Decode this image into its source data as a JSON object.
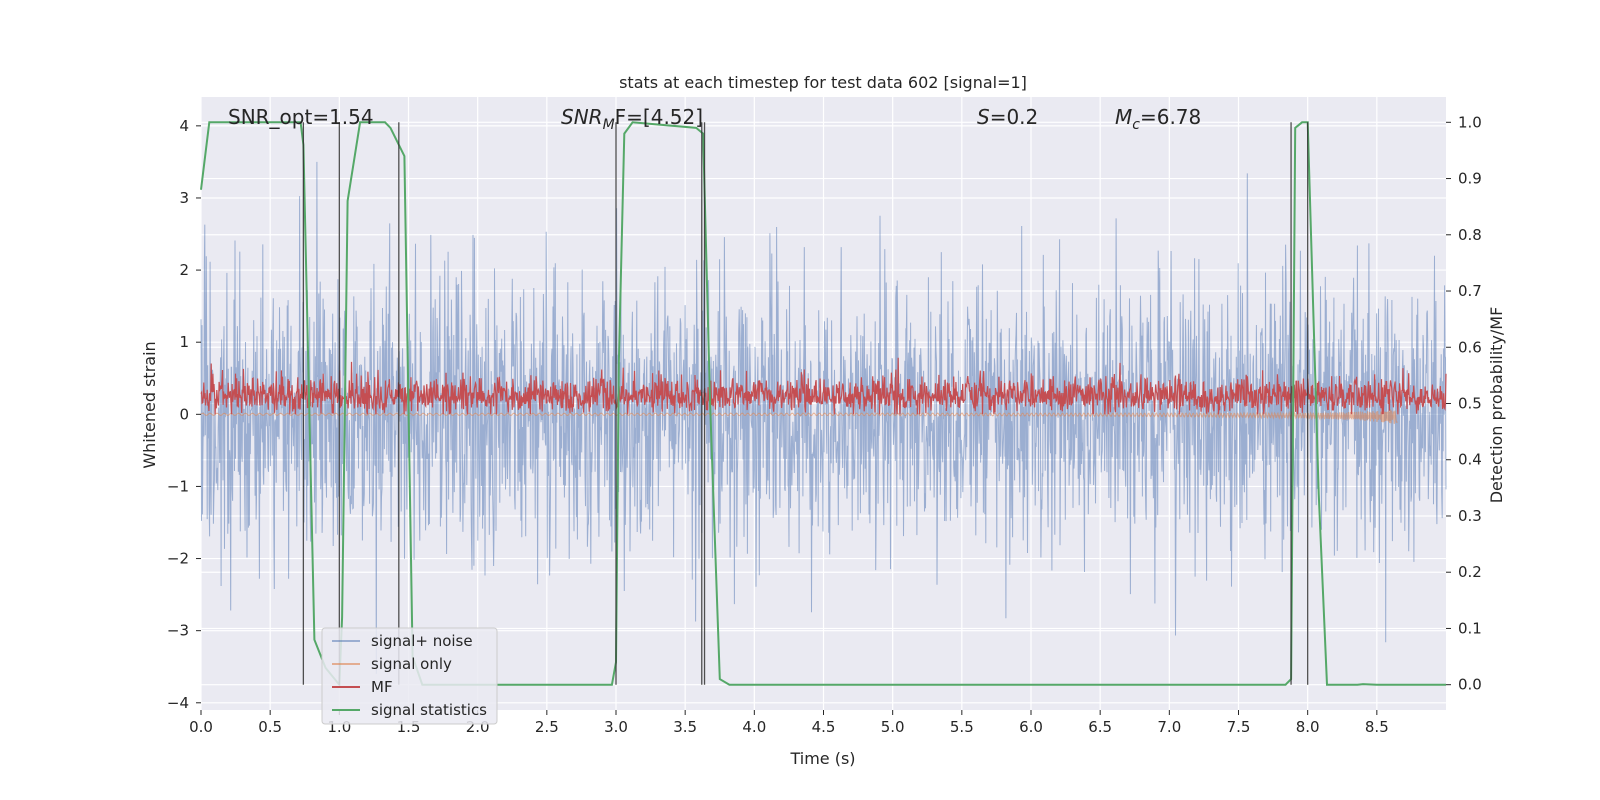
{
  "chart_data": {
    "type": "line",
    "title": "stats at each timestep for test data 602 [signal=1]",
    "xlabel": "Time (s)",
    "ylabel": "Whitened strain",
    "ylabel_right": "Detection probability/MF",
    "xlim": [
      0,
      9.0
    ],
    "ylim": [
      -4.1,
      4.4
    ],
    "ylim_right": [
      -0.045,
      1.045
    ],
    "x_ticks": [
      "0.0",
      "0.5",
      "1.0",
      "1.5",
      "2.0",
      "2.5",
      "3.0",
      "3.5",
      "4.0",
      "4.5",
      "5.0",
      "5.5",
      "6.0",
      "6.5",
      "7.0",
      "7.5",
      "8.0",
      "8.5"
    ],
    "y_ticks": [
      "−4",
      "−3",
      "−2",
      "−1",
      "0",
      "1",
      "2",
      "3",
      "4"
    ],
    "y_right_ticks": [
      "0.0",
      "0.1",
      "0.2",
      "0.3",
      "0.4",
      "0.5",
      "0.6",
      "0.7",
      "0.8",
      "0.9",
      "1.0"
    ],
    "grid": true,
    "legend_position": "lower-left",
    "colors": {
      "background": "#eaeaf2",
      "grid": "#ffffff",
      "signal_noise": "#4c72b0",
      "signal_only": "#dd8452",
      "mf": "#c44e52",
      "stats": "#55a868",
      "vlines": "#333333"
    },
    "annotations": {
      "snr_opt": "SNR_opt=1.54",
      "snr_mf_base": "SNR",
      "snr_mf_sub": "M",
      "snr_mf_rest": "F=[4.52]",
      "s_var": "S",
      "s_val": "=0.2",
      "mc_var": "M",
      "mc_sub": "c",
      "mc_val": "=6.78"
    },
    "series": [
      {
        "name": "signal+ noise",
        "description": "noise band",
        "amplitude_typical": 2.0,
        "amplitude_max": 3.5
      },
      {
        "name": "signal only",
        "description": "chirp growing towards merger",
        "amplitude_end": -0.2,
        "t_end": 8.65
      },
      {
        "name": "MF",
        "description": "matched filter output",
        "mean": 0.25,
        "range": [
          0.0,
          1.0
        ]
      },
      {
        "name": "signal statistics",
        "x": [
          0.0,
          0.06,
          0.1,
          0.72,
          0.74,
          0.82,
          0.9,
          1.0,
          1.02,
          1.06,
          1.15,
          1.33,
          1.37,
          1.47,
          1.53,
          1.6,
          2.97,
          3.0,
          3.02,
          3.06,
          3.12,
          3.58,
          3.63,
          3.68,
          3.75,
          3.82,
          7.84,
          7.88,
          7.91,
          7.96,
          8.0,
          8.08,
          8.14,
          8.36,
          8.4,
          8.5,
          9.0
        ],
        "y": [
          0.88,
          1.0,
          1.0,
          1.0,
          0.96,
          0.08,
          0.03,
          0.0,
          0.12,
          0.86,
          1.0,
          1.0,
          0.99,
          0.94,
          0.05,
          0.0,
          0.0,
          0.04,
          0.57,
          0.98,
          1.0,
          0.99,
          0.98,
          0.5,
          0.01,
          0.0,
          0.0,
          0.01,
          0.99,
          1.0,
          1.0,
          0.34,
          0.0,
          0.0,
          0.001,
          0.0,
          0.0
        ]
      }
    ],
    "vlines_x": [
      0.74,
      1.0,
      1.43,
      3.0,
      3.62,
      3.64,
      7.88,
      8.0
    ],
    "legend": [
      "signal+ noise",
      "signal only",
      "MF",
      "signal statistics"
    ]
  }
}
